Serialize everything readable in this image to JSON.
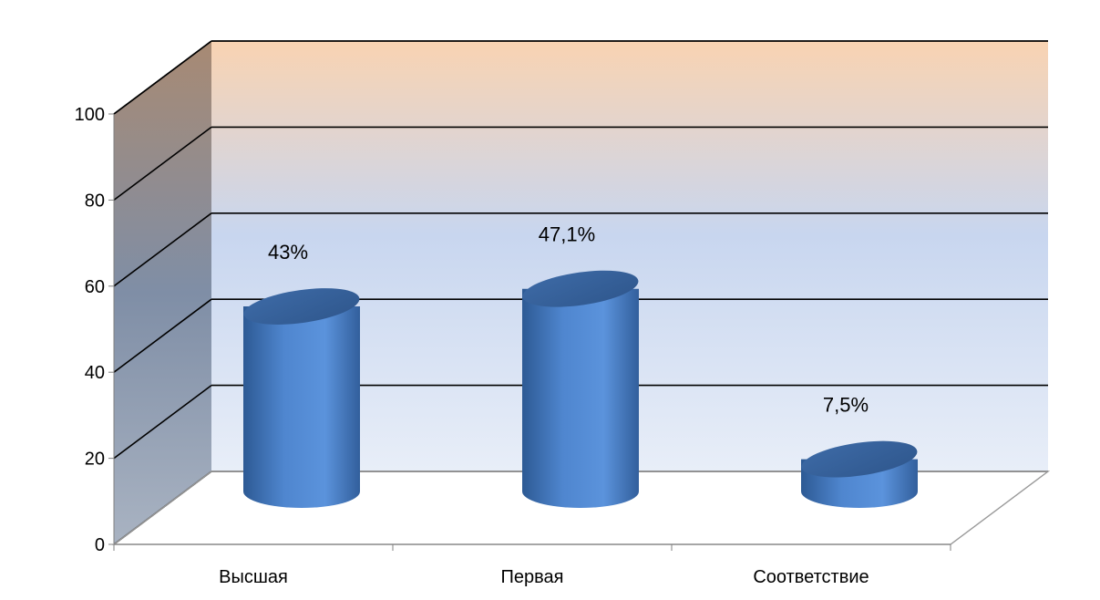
{
  "chart_data": {
    "type": "bar",
    "style": "3d-cylinder",
    "title": "",
    "categories": [
      "Высшая",
      "Первая",
      "Соответствие"
    ],
    "series": [
      {
        "values": [
          43,
          47.1,
          7.5
        ],
        "data_labels": [
          "43%",
          "47,1%",
          "7,5%"
        ]
      }
    ],
    "yticks": [
      0,
      20,
      40,
      60,
      80,
      100
    ],
    "ylim": [
      0,
      100
    ],
    "grid": true,
    "colors": {
      "bar": "#4f81bd",
      "bar_dark": "#2c5188",
      "bar_light": "#7fa6dc",
      "wall_top": "#f9d3b2",
      "wall_bottom": "#e4ecf8",
      "grid": "#000000"
    }
  }
}
